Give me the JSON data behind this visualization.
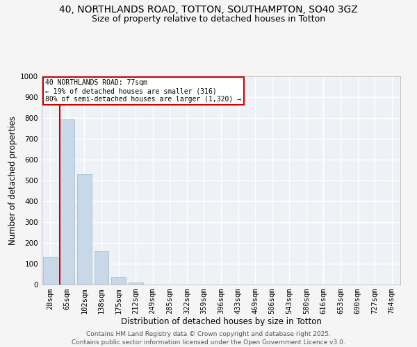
{
  "title_line1": "40, NORTHLANDS ROAD, TOTTON, SOUTHAMPTON, SO40 3GZ",
  "title_line2": "Size of property relative to detached houses in Totton",
  "xlabel": "Distribution of detached houses by size in Totton",
  "ylabel": "Number of detached properties",
  "bar_color": "#c8d8e8",
  "bar_edge_color": "#a0b8cc",
  "categories": [
    "28sqm",
    "65sqm",
    "102sqm",
    "138sqm",
    "175sqm",
    "212sqm",
    "249sqm",
    "285sqm",
    "322sqm",
    "359sqm",
    "396sqm",
    "433sqm",
    "469sqm",
    "506sqm",
    "543sqm",
    "580sqm",
    "616sqm",
    "653sqm",
    "690sqm",
    "727sqm",
    "764sqm"
  ],
  "values": [
    135,
    795,
    530,
    160,
    37,
    10,
    0,
    0,
    0,
    0,
    0,
    0,
    0,
    0,
    0,
    0,
    0,
    0,
    0,
    0,
    0
  ],
  "ylim": [
    0,
    1000
  ],
  "yticks": [
    0,
    100,
    200,
    300,
    400,
    500,
    600,
    700,
    800,
    900,
    1000
  ],
  "annotation_text": "40 NORTHLANDS ROAD: 77sqm\n← 19% of detached houses are smaller (316)\n80% of semi-detached houses are larger (1,320) →",
  "annotation_box_color": "#ffffff",
  "annotation_edge_color": "#cc0000",
  "footer_line1": "Contains HM Land Registry data © Crown copyright and database right 2025.",
  "footer_line2": "Contains public sector information licensed under the Open Government Licence v3.0.",
  "bg_color": "#eef2f6",
  "grid_color": "#ffffff",
  "title_fontsize": 10,
  "subtitle_fontsize": 9,
  "axis_fontsize": 8.5,
  "tick_fontsize": 7.5,
  "footer_fontsize": 6.5
}
